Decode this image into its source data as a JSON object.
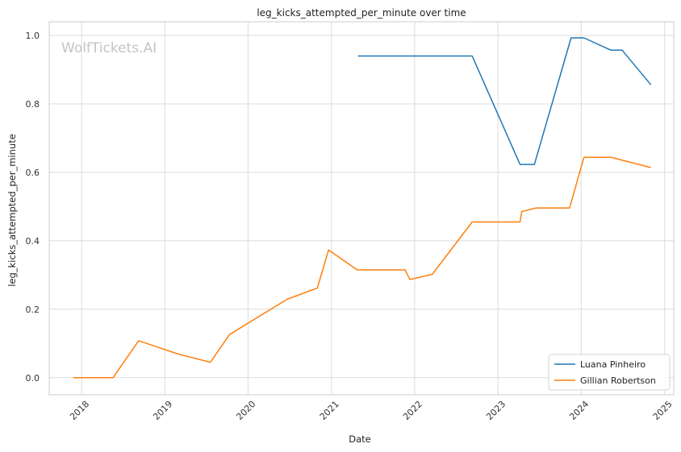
{
  "chart_data": {
    "type": "line",
    "title": "leg_kicks_attempted_per_minute over time",
    "xlabel": "Date",
    "ylabel": "leg_kicks_attempted_per_minute",
    "watermark": "WolfTickets.AI",
    "xlim": [
      "2017-08-12",
      "2025-02-10"
    ],
    "ylim": [
      -0.05,
      1.04
    ],
    "x_ticks": [
      "2018",
      "2019",
      "2020",
      "2021",
      "2022",
      "2023",
      "2024",
      "2025"
    ],
    "y_ticks": [
      "0.0",
      "0.2",
      "0.4",
      "0.6",
      "0.8",
      "1.0"
    ],
    "grid": true,
    "legend_position": "lower-right",
    "series": [
      {
        "name": "Luana Pinheiro",
        "color": "#1f77b4",
        "points": [
          [
            "2021-04-27",
            0.94
          ],
          [
            "2022-09-10",
            0.94
          ],
          [
            "2023-04-08",
            0.623
          ],
          [
            "2023-06-10",
            0.623
          ],
          [
            "2023-11-18",
            0.993
          ],
          [
            "2024-01-13",
            0.993
          ],
          [
            "2024-05-11",
            0.957
          ],
          [
            "2024-06-29",
            0.957
          ],
          [
            "2024-11-02",
            0.856
          ]
        ]
      },
      {
        "name": "Gillian Robertson",
        "color": "#ff7f0e",
        "points": [
          [
            "2017-11-25",
            0.0
          ],
          [
            "2018-05-19",
            0.0
          ],
          [
            "2018-09-08",
            0.108
          ],
          [
            "2019-03-02",
            0.069
          ],
          [
            "2019-07-20",
            0.045
          ],
          [
            "2019-10-12",
            0.126
          ],
          [
            "2020-06-20",
            0.229
          ],
          [
            "2020-10-31",
            0.262
          ],
          [
            "2020-12-19",
            0.373
          ],
          [
            "2021-04-24",
            0.315
          ],
          [
            "2021-11-20",
            0.315
          ],
          [
            "2021-12-11",
            0.287
          ],
          [
            "2022-03-19",
            0.302
          ],
          [
            "2022-09-10",
            0.455
          ],
          [
            "2023-04-08",
            0.455
          ],
          [
            "2023-04-15",
            0.485
          ],
          [
            "2023-06-17",
            0.496
          ],
          [
            "2023-11-11",
            0.496
          ],
          [
            "2024-01-13",
            0.644
          ],
          [
            "2024-05-11",
            0.644
          ],
          [
            "2024-11-02",
            0.614
          ]
        ]
      }
    ]
  }
}
